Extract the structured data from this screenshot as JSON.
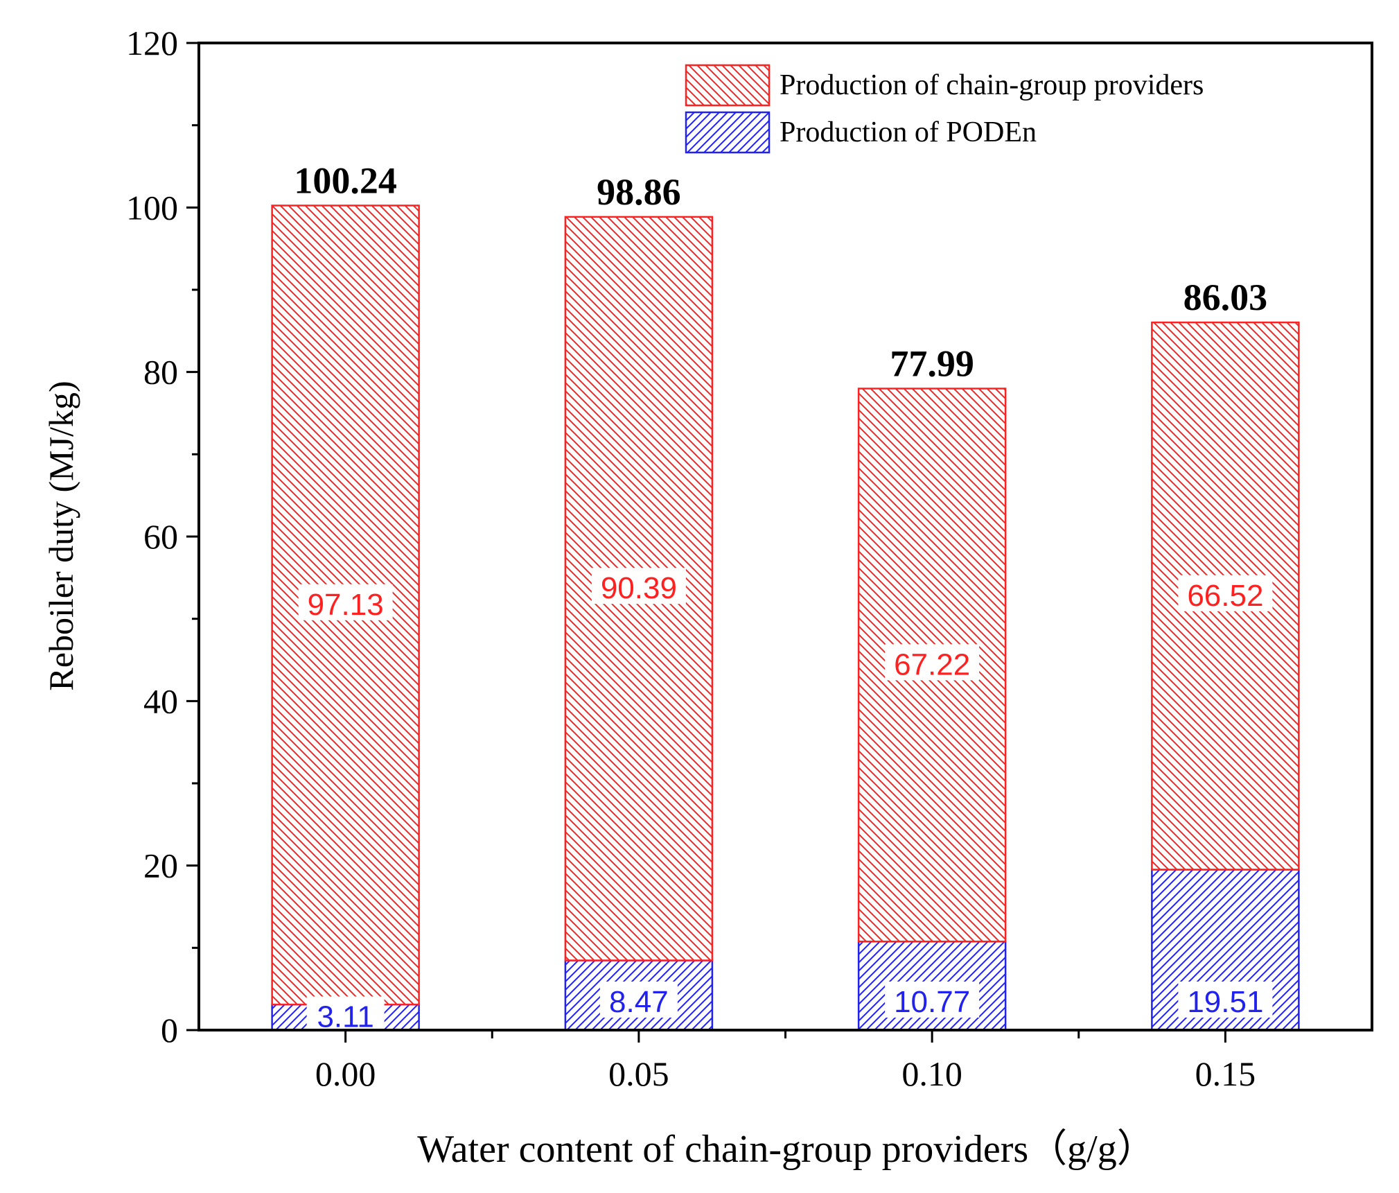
{
  "chart_data": {
    "type": "bar",
    "stacked": true,
    "categories": [
      "0.00",
      "0.05",
      "0.10",
      "0.15"
    ],
    "series": [
      {
        "name": "Production of PODEn",
        "color": "#2222ee",
        "hatch": "forward",
        "values": [
          3.11,
          8.47,
          10.77,
          19.51
        ],
        "labels": [
          "3.11",
          "8.47",
          "10.77",
          "19.51"
        ]
      },
      {
        "name": "Production of chain-group providers",
        "color": "#ff2020",
        "hatch": "backward",
        "values": [
          97.13,
          90.39,
          67.22,
          66.52
        ],
        "labels": [
          "97.13",
          "90.39",
          "67.22",
          "66.52"
        ]
      }
    ],
    "totals": [
      100.24,
      98.86,
      77.99,
      86.03
    ],
    "total_labels": [
      "100.24",
      "98.86",
      "77.99",
      "86.03"
    ],
    "xlabel": "Water content of chain-group providers（g/g）",
    "ylabel": "Reboiler duty (MJ/kg)",
    "ylim": [
      0,
      120
    ],
    "yticks": [
      "0",
      "20",
      "40",
      "60",
      "80",
      "100",
      "120"
    ],
    "legend_position": "top-right",
    "grid": false
  }
}
